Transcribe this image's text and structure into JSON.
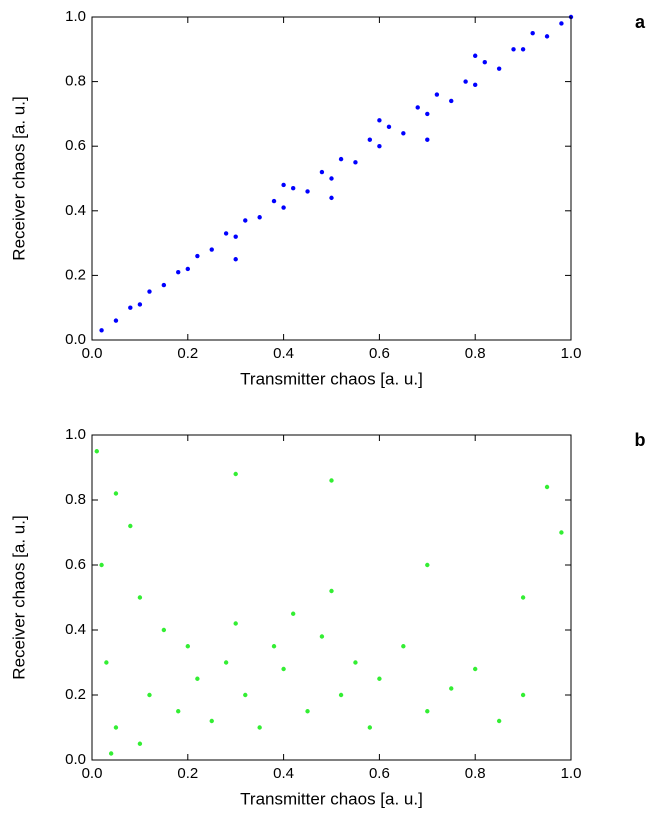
{
  "chart_data": [
    {
      "type": "scatter",
      "label": "a",
      "xlabel": "Transmitter chaos [a. u.]",
      "ylabel": "Receiver chaos [a. u.]",
      "color": "#0000ff",
      "x": [
        0.02,
        0.05,
        0.08,
        0.1,
        0.12,
        0.15,
        0.18,
        0.2,
        0.22,
        0.25,
        0.28,
        0.3,
        0.32,
        0.35,
        0.38,
        0.4,
        0.42,
        0.45,
        0.48,
        0.5,
        0.52,
        0.55,
        0.58,
        0.6,
        0.62,
        0.65,
        0.68,
        0.7,
        0.72,
        0.75,
        0.78,
        0.8,
        0.82,
        0.85,
        0.88,
        0.9,
        0.92,
        0.95,
        0.98,
        1.0,
        0.3,
        0.4,
        0.5,
        0.6,
        0.7,
        0.8
      ],
      "values": [
        0.03,
        0.06,
        0.1,
        0.11,
        0.15,
        0.17,
        0.21,
        0.22,
        0.26,
        0.28,
        0.33,
        0.32,
        0.37,
        0.38,
        0.43,
        0.41,
        0.47,
        0.46,
        0.52,
        0.5,
        0.56,
        0.55,
        0.62,
        0.6,
        0.66,
        0.64,
        0.72,
        0.7,
        0.76,
        0.74,
        0.8,
        0.79,
        0.86,
        0.84,
        0.9,
        0.9,
        0.95,
        0.94,
        0.98,
        1.0,
        0.25,
        0.48,
        0.44,
        0.68,
        0.62,
        0.88
      ],
      "xlim": [
        0,
        1
      ],
      "ylim": [
        0,
        1
      ],
      "xticks": [
        {
          "value": 0,
          "label": "0.0"
        },
        0.2,
        0.4,
        0.6,
        0.8,
        {
          "value": 1,
          "label": "1.0"
        }
      ],
      "yticks": [
        {
          "value": 0,
          "label": "0.0"
        },
        0.2,
        0.4,
        0.6,
        0.8,
        {
          "value": 1,
          "label": "1.0"
        }
      ]
    },
    {
      "type": "scatter",
      "label": "b",
      "xlabel": "Transmitter chaos [a. u.]",
      "ylabel": "Receiver chaos [a. u.]",
      "color": "#33ee33",
      "x": [
        0.01,
        0.02,
        0.03,
        0.05,
        0.05,
        0.08,
        0.1,
        0.12,
        0.15,
        0.18,
        0.2,
        0.22,
        0.25,
        0.28,
        0.3,
        0.32,
        0.35,
        0.38,
        0.4,
        0.42,
        0.45,
        0.48,
        0.5,
        0.52,
        0.55,
        0.58,
        0.6,
        0.65,
        0.7,
        0.75,
        0.8,
        0.85,
        0.9,
        0.95,
        0.98,
        0.3,
        0.5,
        0.7,
        0.9,
        0.1,
        0.04
      ],
      "values": [
        0.95,
        0.6,
        0.3,
        0.82,
        0.1,
        0.72,
        0.5,
        0.2,
        0.4,
        0.15,
        0.35,
        0.25,
        0.12,
        0.3,
        0.42,
        0.2,
        0.1,
        0.35,
        0.28,
        0.45,
        0.15,
        0.38,
        0.52,
        0.2,
        0.3,
        0.1,
        0.25,
        0.35,
        0.15,
        0.22,
        0.28,
        0.12,
        0.2,
        0.84,
        0.7,
        0.88,
        0.86,
        0.6,
        0.5,
        0.05,
        0.02
      ],
      "xlim": [
        0,
        1
      ],
      "ylim": [
        0,
        1
      ],
      "xticks": [
        {
          "value": 0,
          "label": "0.0"
        },
        0.2,
        0.4,
        0.6,
        0.8,
        {
          "value": 1,
          "label": "1.0"
        }
      ],
      "yticks": [
        {
          "value": 0,
          "label": "0.0"
        },
        0.2,
        0.4,
        0.6,
        0.8,
        {
          "value": 1,
          "label": "1.0"
        }
      ]
    }
  ]
}
